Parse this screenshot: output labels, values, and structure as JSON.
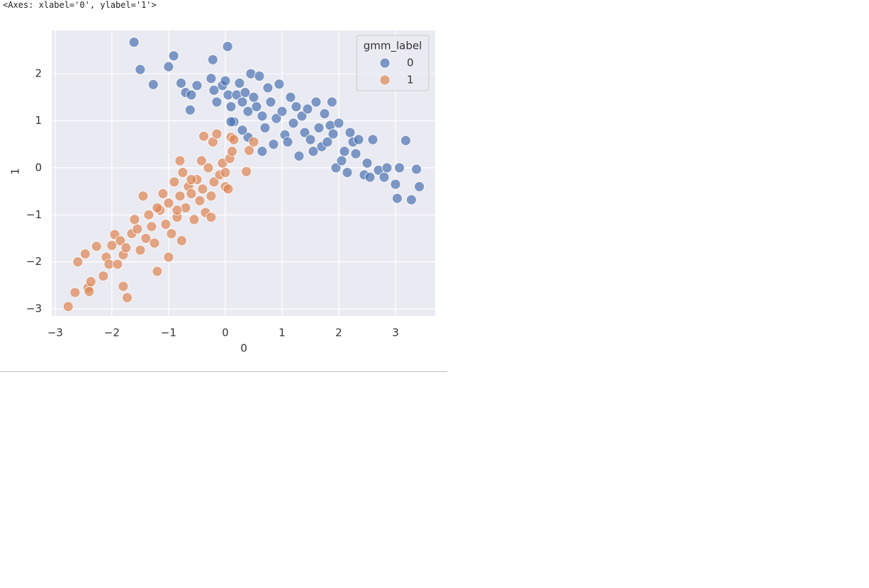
{
  "output_text": "<Axes: xlabel='0', ylabel='1'>",
  "chart_data": {
    "type": "scatter",
    "xlabel": "0",
    "ylabel": "1",
    "legend_title": "gmm_label",
    "legend": "upper right",
    "grid": true,
    "xlim": [
      -3.06,
      3.7
    ],
    "ylim": [
      -3.15,
      2.92
    ],
    "xticks": [
      {
        "value": -3,
        "label": "−3"
      },
      {
        "value": -2,
        "label": "−2"
      },
      {
        "value": -1,
        "label": "−1"
      },
      0,
      1,
      2,
      3
    ],
    "yticks": [
      {
        "value": -3,
        "label": "−3"
      },
      {
        "value": -2,
        "label": "−2"
      },
      {
        "value": -1,
        "label": "−1"
      },
      0,
      1,
      2
    ],
    "series": [
      {
        "name": "0",
        "color": "#4c72b0",
        "x": [
          -1.61,
          -0.91,
          -1.5,
          -1.0,
          -1.27,
          0.04,
          -0.22,
          -0.78,
          -0.7,
          -0.6,
          -0.62,
          -0.5,
          -0.25,
          -0.2,
          -0.15,
          -0.05,
          0.0,
          0.05,
          0.1,
          0.15,
          0.2,
          0.25,
          0.3,
          0.35,
          0.4,
          0.45,
          0.5,
          0.55,
          0.6,
          0.65,
          0.7,
          0.75,
          0.8,
          0.85,
          0.9,
          0.95,
          1.0,
          1.05,
          1.1,
          1.15,
          1.2,
          1.25,
          1.3,
          1.35,
          1.4,
          1.45,
          1.5,
          1.55,
          1.6,
          1.65,
          1.7,
          1.75,
          1.8,
          1.85,
          1.9,
          1.95,
          2.0,
          2.05,
          2.1,
          2.2,
          2.25,
          2.3,
          2.35,
          2.45,
          2.5,
          2.55,
          2.6,
          2.7,
          2.8,
          2.85,
          3.0,
          3.03,
          3.07,
          3.18,
          3.28,
          3.37,
          3.42,
          0.4,
          0.3,
          1.88,
          2.15,
          0.1,
          0.65
        ],
        "values": [
          2.67,
          2.38,
          2.09,
          2.15,
          1.77,
          2.58,
          2.3,
          1.8,
          1.6,
          1.55,
          1.23,
          1.75,
          1.9,
          1.65,
          1.4,
          1.75,
          1.85,
          1.55,
          1.3,
          0.98,
          1.55,
          1.8,
          1.4,
          1.6,
          1.2,
          2.0,
          1.5,
          1.3,
          1.95,
          1.1,
          0.85,
          1.7,
          1.4,
          0.5,
          1.05,
          1.78,
          1.2,
          0.7,
          0.55,
          1.5,
          0.95,
          1.3,
          0.25,
          1.1,
          0.75,
          1.25,
          0.6,
          0.35,
          1.4,
          0.85,
          0.45,
          1.15,
          0.55,
          0.9,
          0.72,
          0.0,
          0.95,
          0.15,
          0.35,
          0.75,
          0.55,
          0.3,
          0.6,
          -0.15,
          0.1,
          -0.2,
          0.6,
          -0.05,
          -0.2,
          0.0,
          -0.35,
          -0.65,
          0.0,
          0.58,
          -0.68,
          -0.03,
          -0.4,
          0.65,
          0.8,
          1.4,
          -0.1,
          0.98,
          0.35
        ]
      },
      {
        "name": "1",
        "color": "#dd8452",
        "x": [
          -2.77,
          -2.65,
          -2.6,
          -2.47,
          -2.42,
          -2.4,
          -2.37,
          -2.27,
          -2.15,
          -2.1,
          -2.05,
          -2.0,
          -1.95,
          -1.9,
          -1.85,
          -1.8,
          -1.8,
          -1.73,
          -1.75,
          -1.65,
          -1.6,
          -1.55,
          -1.5,
          -1.45,
          -1.4,
          -1.35,
          -1.3,
          -1.2,
          -1.25,
          -1.15,
          -1.1,
          -1.05,
          -1.0,
          -1.0,
          -0.95,
          -0.9,
          -0.85,
          -0.8,
          -0.77,
          -0.8,
          -0.75,
          -0.7,
          -0.65,
          -0.6,
          -0.55,
          -0.5,
          -0.45,
          -0.42,
          -0.4,
          -0.38,
          -0.35,
          -0.3,
          -0.25,
          -0.22,
          -0.2,
          -0.15,
          -0.1,
          -0.05,
          0.0,
          0.05,
          0.08,
          0.1,
          0.12,
          0.15,
          0.37,
          0.42,
          0.5,
          -0.85,
          -1.2,
          -0.6,
          -0.25,
          0.0
        ],
        "values": [
          -2.95,
          -2.65,
          -2.0,
          -1.83,
          -2.55,
          -2.63,
          -2.42,
          -1.67,
          -2.3,
          -1.9,
          -2.05,
          -1.65,
          -1.42,
          -2.05,
          -1.55,
          -1.85,
          -2.52,
          -2.76,
          -1.7,
          -1.4,
          -1.1,
          -1.3,
          -1.75,
          -0.6,
          -1.5,
          -1.0,
          -1.25,
          -2.2,
          -1.6,
          -0.9,
          -0.55,
          -1.2,
          -1.9,
          -0.75,
          -1.4,
          -0.3,
          -1.05,
          -0.6,
          -1.55,
          0.15,
          -0.1,
          -0.85,
          -0.4,
          -0.55,
          -1.1,
          -0.25,
          -0.7,
          0.15,
          -0.45,
          0.67,
          -0.95,
          0.0,
          -0.6,
          0.55,
          -0.3,
          0.72,
          -0.15,
          0.1,
          -0.4,
          -0.45,
          0.2,
          0.65,
          0.35,
          0.6,
          -0.08,
          0.37,
          0.55,
          -0.9,
          -0.85,
          -0.25,
          -1.05,
          -0.1
        ]
      }
    ]
  }
}
